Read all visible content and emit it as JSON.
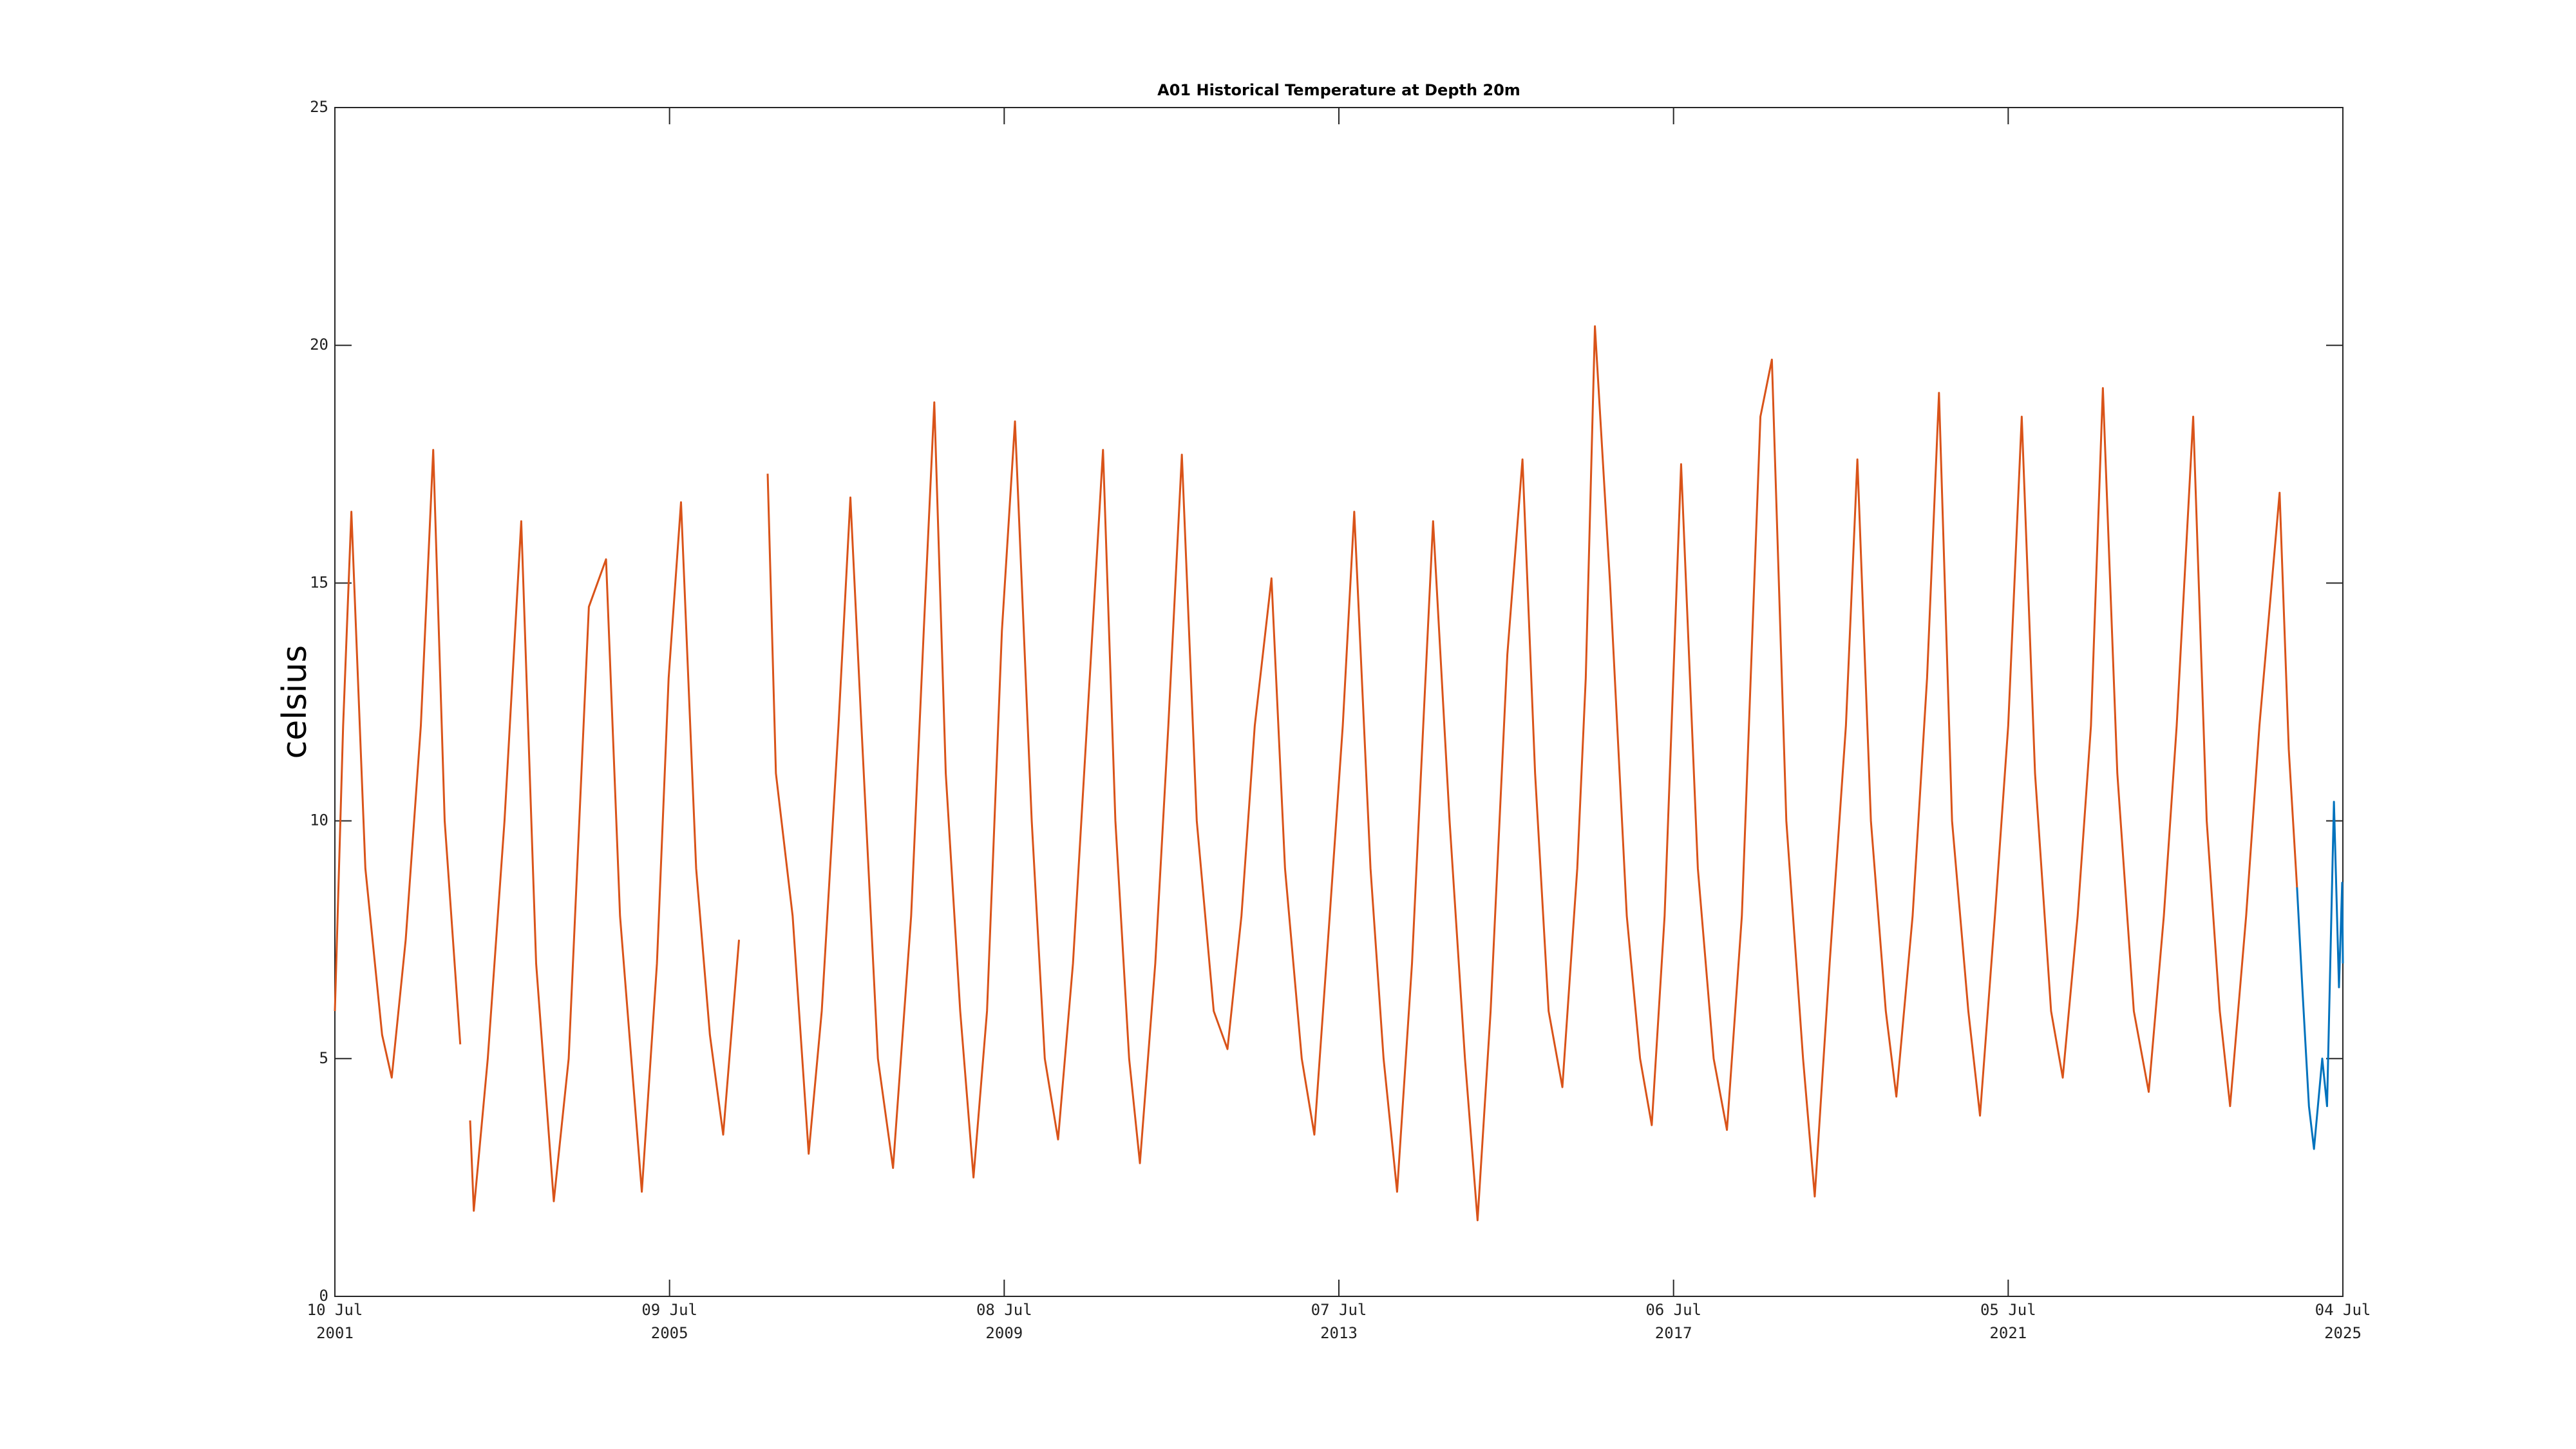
{
  "chart_data": {
    "type": "line",
    "title": "A01 Historical Temperature at Depth 20m",
    "y_label": "celsius",
    "xlim": [
      "2001-07-10",
      "2025-07-04"
    ],
    "xticks": [
      {
        "value": "2001-07-10",
        "label": [
          "10 Jul",
          "2001"
        ]
      },
      {
        "value": "2005-07-09",
        "label": [
          "09 Jul",
          "2005"
        ]
      },
      {
        "value": "2009-07-08",
        "label": [
          "08 Jul",
          "2009"
        ]
      },
      {
        "value": "2013-07-07",
        "label": [
          "07 Jul",
          "2013"
        ]
      },
      {
        "value": "2017-07-06",
        "label": [
          "06 Jul",
          "2017"
        ]
      },
      {
        "value": "2021-07-05",
        "label": [
          "05 Jul",
          "2021"
        ]
      },
      {
        "value": "2025-07-04",
        "label": [
          "04 Jul",
          "2025"
        ]
      }
    ],
    "ylim": [
      0,
      25
    ],
    "yticks": [
      0,
      5,
      10,
      15,
      20,
      25
    ],
    "grid": false,
    "series": [
      {
        "color": "#d95319",
        "x": [
          "2001-07-10",
          "2001-08-15",
          "2001-09-20",
          "2001-11-20",
          "2002-02-01",
          "2002-03-15",
          "2002-05-15",
          "2002-07-20",
          "2002-09-12",
          "2002-11-01",
          "2003-01-08",
          "2003-02-01",
          "2003-02-20",
          "2003-03-08",
          "2003-05-08",
          "2003-07-20",
          "2003-10-01",
          "2003-12-05",
          "2004-02-20",
          "2004-04-25",
          "2004-07-22",
          "2004-10-05",
          "2004-12-05",
          "2005-03-10",
          "2005-05-15",
          "2005-07-05",
          "2005-08-28",
          "2005-11-02",
          "2006-01-01",
          "2006-02-28",
          "2006-05-08",
          "2006-07-01",
          "2006-09-10",
          "2006-10-16",
          "2006-12-28",
          "2007-03-08",
          "2007-05-04",
          "2007-07-16",
          "2007-09-06",
          "2007-10-24",
          "2008-01-04",
          "2008-03-10",
          "2008-05-28",
          "2008-07-22",
          "2008-09-06",
          "2008-10-26",
          "2008-12-28",
          "2009-02-24",
          "2009-04-24",
          "2009-06-28",
          "2009-08-24",
          "2009-11-05",
          "2010-01-01",
          "2010-02-28",
          "2010-05-04",
          "2010-07-16",
          "2010-09-12",
          "2010-11-05",
          "2011-01-04",
          "2011-02-20",
          "2011-04-28",
          "2011-06-24",
          "2011-08-22",
          "2011-10-26",
          "2012-01-08",
          "2012-03-08",
          "2012-05-08",
          "2012-07-05",
          "2012-09-16",
          "2012-11-14",
          "2013-01-26",
          "2013-03-22",
          "2013-05-28",
          "2013-07-24",
          "2013-09-12",
          "2013-11-22",
          "2014-01-18",
          "2014-03-18",
          "2014-05-22",
          "2014-07-10",
          "2014-08-22",
          "2014-11-02",
          "2015-01-08",
          "2015-03-04",
          "2015-04-30",
          "2015-07-12",
          "2015-09-16",
          "2015-11-10",
          "2016-01-08",
          "2016-03-08",
          "2016-05-12",
          "2016-06-18",
          "2016-07-28",
          "2016-10-02",
          "2016-12-14",
          "2017-02-10",
          "2017-04-02",
          "2017-05-28",
          "2017-08-08",
          "2017-10-20",
          "2017-12-28",
          "2018-02-24",
          "2018-04-30",
          "2018-07-20",
          "2018-09-08",
          "2018-11-10",
          "2019-01-22",
          "2019-03-14",
          "2019-05-18",
          "2019-07-28",
          "2019-09-16",
          "2019-11-14",
          "2020-01-18",
          "2020-03-04",
          "2020-05-14",
          "2020-07-16",
          "2020-09-06",
          "2020-11-02",
          "2021-01-12",
          "2021-03-04",
          "2021-05-08",
          "2021-07-05",
          "2021-09-02",
          "2021-10-30",
          "2022-01-08",
          "2022-02-28",
          "2022-05-04",
          "2022-07-01",
          "2022-08-22",
          "2022-10-24",
          "2023-01-04",
          "2023-03-10",
          "2023-05-15",
          "2023-07-10",
          "2023-09-20",
          "2023-11-18",
          "2024-01-14",
          "2024-02-28",
          "2024-05-08",
          "2024-07-05",
          "2024-10-01",
          "2024-11-10",
          "2024-12-16"
        ],
        "values": [
          6,
          12,
          16.5,
          9,
          5.5,
          4.6,
          7.5,
          12,
          17.8,
          10,
          5.3,
          null,
          3.7,
          1.8,
          5,
          10,
          16.3,
          7,
          2,
          5,
          14.5,
          15.5,
          8,
          2.2,
          7,
          13,
          16.7,
          9,
          5.5,
          3.4,
          7.5,
          null,
          17.3,
          11,
          8,
          3,
          6,
          12,
          16.8,
          12,
          5,
          2.7,
          8,
          14,
          18.8,
          11,
          6,
          2.5,
          6,
          14,
          18.4,
          10,
          5,
          3.3,
          7,
          13,
          17.8,
          10,
          5,
          2.8,
          7,
          12,
          17.7,
          10,
          6,
          5.2,
          8,
          12,
          15.1,
          9,
          5,
          3.4,
          8,
          12,
          16.5,
          9,
          5,
          2.2,
          7,
          12,
          16.3,
          10,
          5,
          1.6,
          6,
          13.5,
          17.6,
          11,
          6,
          4.4,
          9,
          13,
          20.4,
          15,
          8,
          5,
          3.6,
          8,
          17.5,
          9,
          5,
          3.5,
          8,
          18.5,
          19.7,
          10,
          5,
          2.1,
          7,
          12,
          17.6,
          10,
          6,
          4.2,
          8,
          13,
          19,
          10,
          6,
          3.8,
          8,
          12,
          18.5,
          11,
          6,
          4.6,
          8,
          12,
          19.1,
          11,
          6,
          4.3,
          8,
          12,
          18.5,
          10,
          6,
          4,
          8,
          12,
          16.9,
          11.5,
          8.6
        ]
      },
      {
        "color": "#0072bd",
        "x": [
          "2024-12-16",
          "2025-01-08",
          "2025-02-06",
          "2025-02-28",
          "2025-04-05",
          "2025-04-26",
          "2025-05-26",
          "2025-06-17",
          "2025-07-01",
          "2025-07-04"
        ],
        "values": [
          8.6,
          6.5,
          4,
          3.1,
          5,
          4,
          10.4,
          6.5,
          8.7,
          7
        ]
      }
    ]
  }
}
